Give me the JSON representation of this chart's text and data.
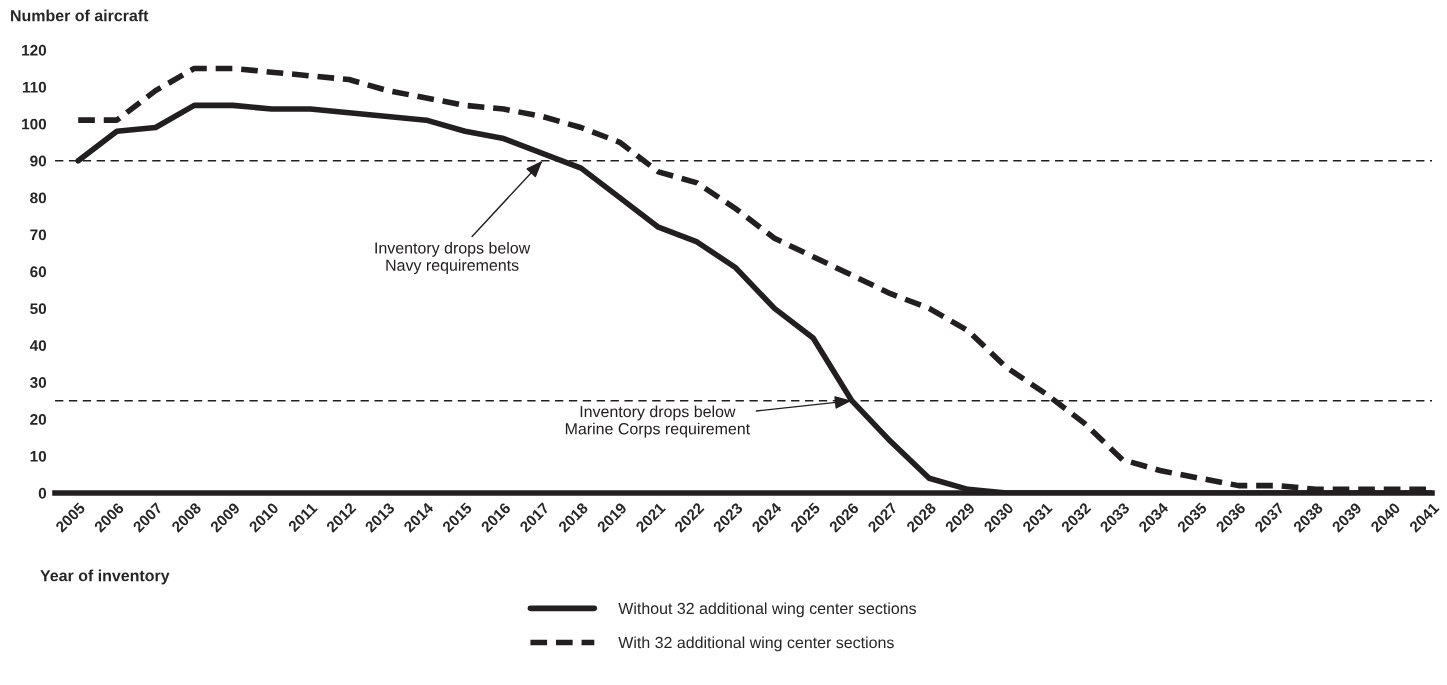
{
  "chart_data": {
    "type": "line",
    "ylabel": "Number of aircraft",
    "xlabel": "Year of inventory",
    "categories": [
      "2005",
      "2006",
      "2007",
      "2008",
      "2009",
      "2010",
      "2011",
      "2012",
      "2013",
      "2014",
      "2015",
      "2016",
      "2017",
      "2018",
      "2019",
      "2021",
      "2022",
      "2023",
      "2024",
      "2025",
      "2026",
      "2027",
      "2028",
      "2029",
      "2030",
      "2031",
      "2032",
      "2033",
      "2034",
      "2035",
      "2036",
      "2037",
      "2038",
      "2039",
      "2040",
      "2041"
    ],
    "series": [
      {
        "name": "Without 32 additional wing center sections",
        "color": "#231f20",
        "line_style": "solid",
        "values": [
          90,
          98,
          99,
          105,
          105,
          104,
          104,
          103,
          102,
          101,
          98,
          96,
          92,
          88,
          80,
          72,
          68,
          61,
          50,
          42,
          25,
          14,
          4,
          1,
          0,
          0,
          0,
          0,
          0,
          0,
          0,
          0,
          0,
          0,
          0,
          0
        ]
      },
      {
        "name": "With 32 additional wing center sections",
        "color": "#231f20",
        "line_style": "dashed",
        "values": [
          101,
          101,
          109,
          115,
          115,
          114,
          113,
          112,
          109,
          107,
          105,
          104,
          102,
          99,
          95,
          87,
          84,
          77,
          69,
          64,
          59,
          54,
          50,
          44,
          34,
          27,
          19,
          9,
          6,
          4,
          2,
          2,
          1,
          1,
          1,
          1
        ]
      }
    ],
    "ylim": [
      0,
      120
    ],
    "yticks": [
      0,
      10,
      20,
      30,
      40,
      50,
      60,
      70,
      80,
      90,
      100,
      110,
      120
    ],
    "ref_lines": [
      {
        "axis": "y",
        "value": 90,
        "color": "#231f20",
        "line_style": "dashed"
      },
      {
        "axis": "y",
        "value": 25,
        "color": "#231f20",
        "line_style": "dashed"
      }
    ],
    "annotations": [
      {
        "text": "Inventory drops below\nNavy requirements",
        "x": "2017",
        "y": 90
      },
      {
        "text": "Inventory drops below\nMarine Corps requirement",
        "x": "2026",
        "y": 25
      }
    ],
    "grid": false,
    "legend": "bottom",
    "marker": "none"
  }
}
